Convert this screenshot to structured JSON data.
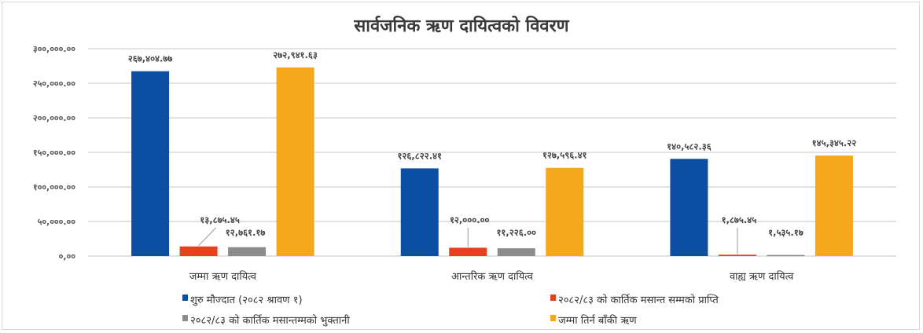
{
  "chart_data": {
    "type": "bar",
    "title": "सार्वजनिक ऋण दायित्वको विवरण",
    "xlabel": "",
    "ylabel": "",
    "ylim": [
      0,
      300000
    ],
    "yticks": [
      "०,००",
      "५०,०००.००",
      "१००,०००.००",
      "१५०,०००.००",
      "२००,०००.००",
      "२५०,०००.००",
      "३००,०००.००"
    ],
    "ytick_values": [
      0,
      50000,
      100000,
      150000,
      200000,
      250000,
      300000
    ],
    "grid": true,
    "legend_position": "bottom",
    "categories": [
      "जम्मा ऋण दायित्व",
      "आन्तरिक ऋण दायित्व",
      "वाह्य ऋण दायित्व"
    ],
    "series": [
      {
        "name": "शुरु मौज्दात (२०८२ श्रावण १)",
        "color": "#0b4ea2",
        "values": [
          267404.77,
          126822.41,
          140582.36
        ],
        "labels": [
          "२६७,४०४.७७",
          "१२६,८२२.४१",
          "१४०,५८२.३६"
        ]
      },
      {
        "name": "२०८२/८३ को कार्तिक मसान्त सम्मको प्राप्ति",
        "color": "#e8401c",
        "values": [
          13875.45,
          12000.0,
          1875.45
        ],
        "labels": [
          "१३,८७५.४५",
          "१२,०००.००",
          "१,८७५.४५"
        ]
      },
      {
        "name": "२०८२/८३ को कार्तिक मसान्तम्मको भुक्तानी",
        "color": "#8c8c8c",
        "values": [
          12761.17,
          11226.0,
          1535.17
        ],
        "labels": [
          "१२,७६१.१७",
          "११,२२६.००",
          "१,५३५.१७"
        ]
      },
      {
        "name": "जम्मा तिर्न बाँकी ऋण",
        "color": "#f6a81c",
        "values": [
          272941.63,
          127596.41,
          145345.22
        ],
        "labels": [
          "२७२,९४१.६३",
          "१२७,५९६.४१",
          "१४५,३४५.२२"
        ]
      }
    ]
  }
}
